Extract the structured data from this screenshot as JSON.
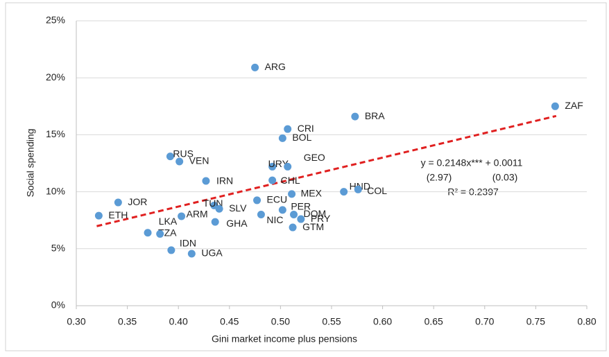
{
  "chart_data": {
    "type": "scatter",
    "x_label": "Gini market income plus pensions",
    "y_label": "Social spending",
    "labels": [
      "ARG",
      "ZAF",
      "BRA",
      "CRI",
      "BOL",
      "RUS",
      "VEN",
      "URY",
      "GEO",
      "IRN",
      "CHL",
      "HND",
      "COL",
      "MEX",
      "JOR",
      "ECU",
      "PER",
      "TUN",
      "SLV",
      "ETH",
      "ARM",
      "DOM",
      "NIC",
      "GHA",
      "PRY",
      "GTM",
      "TZA",
      "LKA",
      "IDN",
      "UGA"
    ],
    "x": [
      0.475,
      0.769,
      0.573,
      0.507,
      0.502,
      0.392,
      0.401,
      0.492,
      0.507,
      0.427,
      0.492,
      0.562,
      0.576,
      0.511,
      0.341,
      0.477,
      0.502,
      0.435,
      0.44,
      0.322,
      0.403,
      0.513,
      0.481,
      0.436,
      0.52,
      0.512,
      0.37,
      0.382,
      0.393,
      0.413
    ],
    "values": [
      20.9,
      17.5,
      16.6,
      15.5,
      14.7,
      13.1,
      12.65,
      12.2,
      12.2,
      10.95,
      11.0,
      10.0,
      10.2,
      9.8,
      9.06,
      9.25,
      8.4,
      8.8,
      8.5,
      7.9,
      7.85,
      8.0,
      8.0,
      7.35,
      7.6,
      6.87,
      6.4,
      6.3,
      4.87,
      4.56
    ],
    "color": "#5b9bd5",
    "trendline": {
      "x": [
        0.32,
        0.77
      ],
      "values": [
        6.98,
        16.65
      ],
      "color": "#e02020"
    },
    "annotations": [
      "y = 0.2148x*** + 0.0011",
      "(2.97)",
      "(0.03)",
      "R² = 0.2397"
    ],
    "xlim": [
      0.3,
      0.8
    ],
    "xticks": [
      {
        "value": 0.3,
        "label": "0.30"
      },
      0.35,
      {
        "value": 0.4,
        "label": "0.40"
      },
      0.45,
      {
        "value": 0.5,
        "label": "0.50"
      },
      0.55,
      {
        "value": 0.6,
        "label": "0.60"
      },
      0.65,
      {
        "value": 0.7,
        "label": "0.70"
      },
      0.75,
      {
        "value": 0.8,
        "label": "0.80"
      }
    ],
    "ylim": [
      0,
      25
    ],
    "yticks": [
      {
        "value": 0,
        "label": "0%"
      },
      {
        "value": 5,
        "label": "5%"
      },
      {
        "value": 10,
        "label": "10%"
      },
      {
        "value": 15,
        "label": "15%"
      },
      {
        "value": 20,
        "label": "20%"
      },
      {
        "value": 25,
        "label": "25%"
      }
    ],
    "grid": true
  }
}
